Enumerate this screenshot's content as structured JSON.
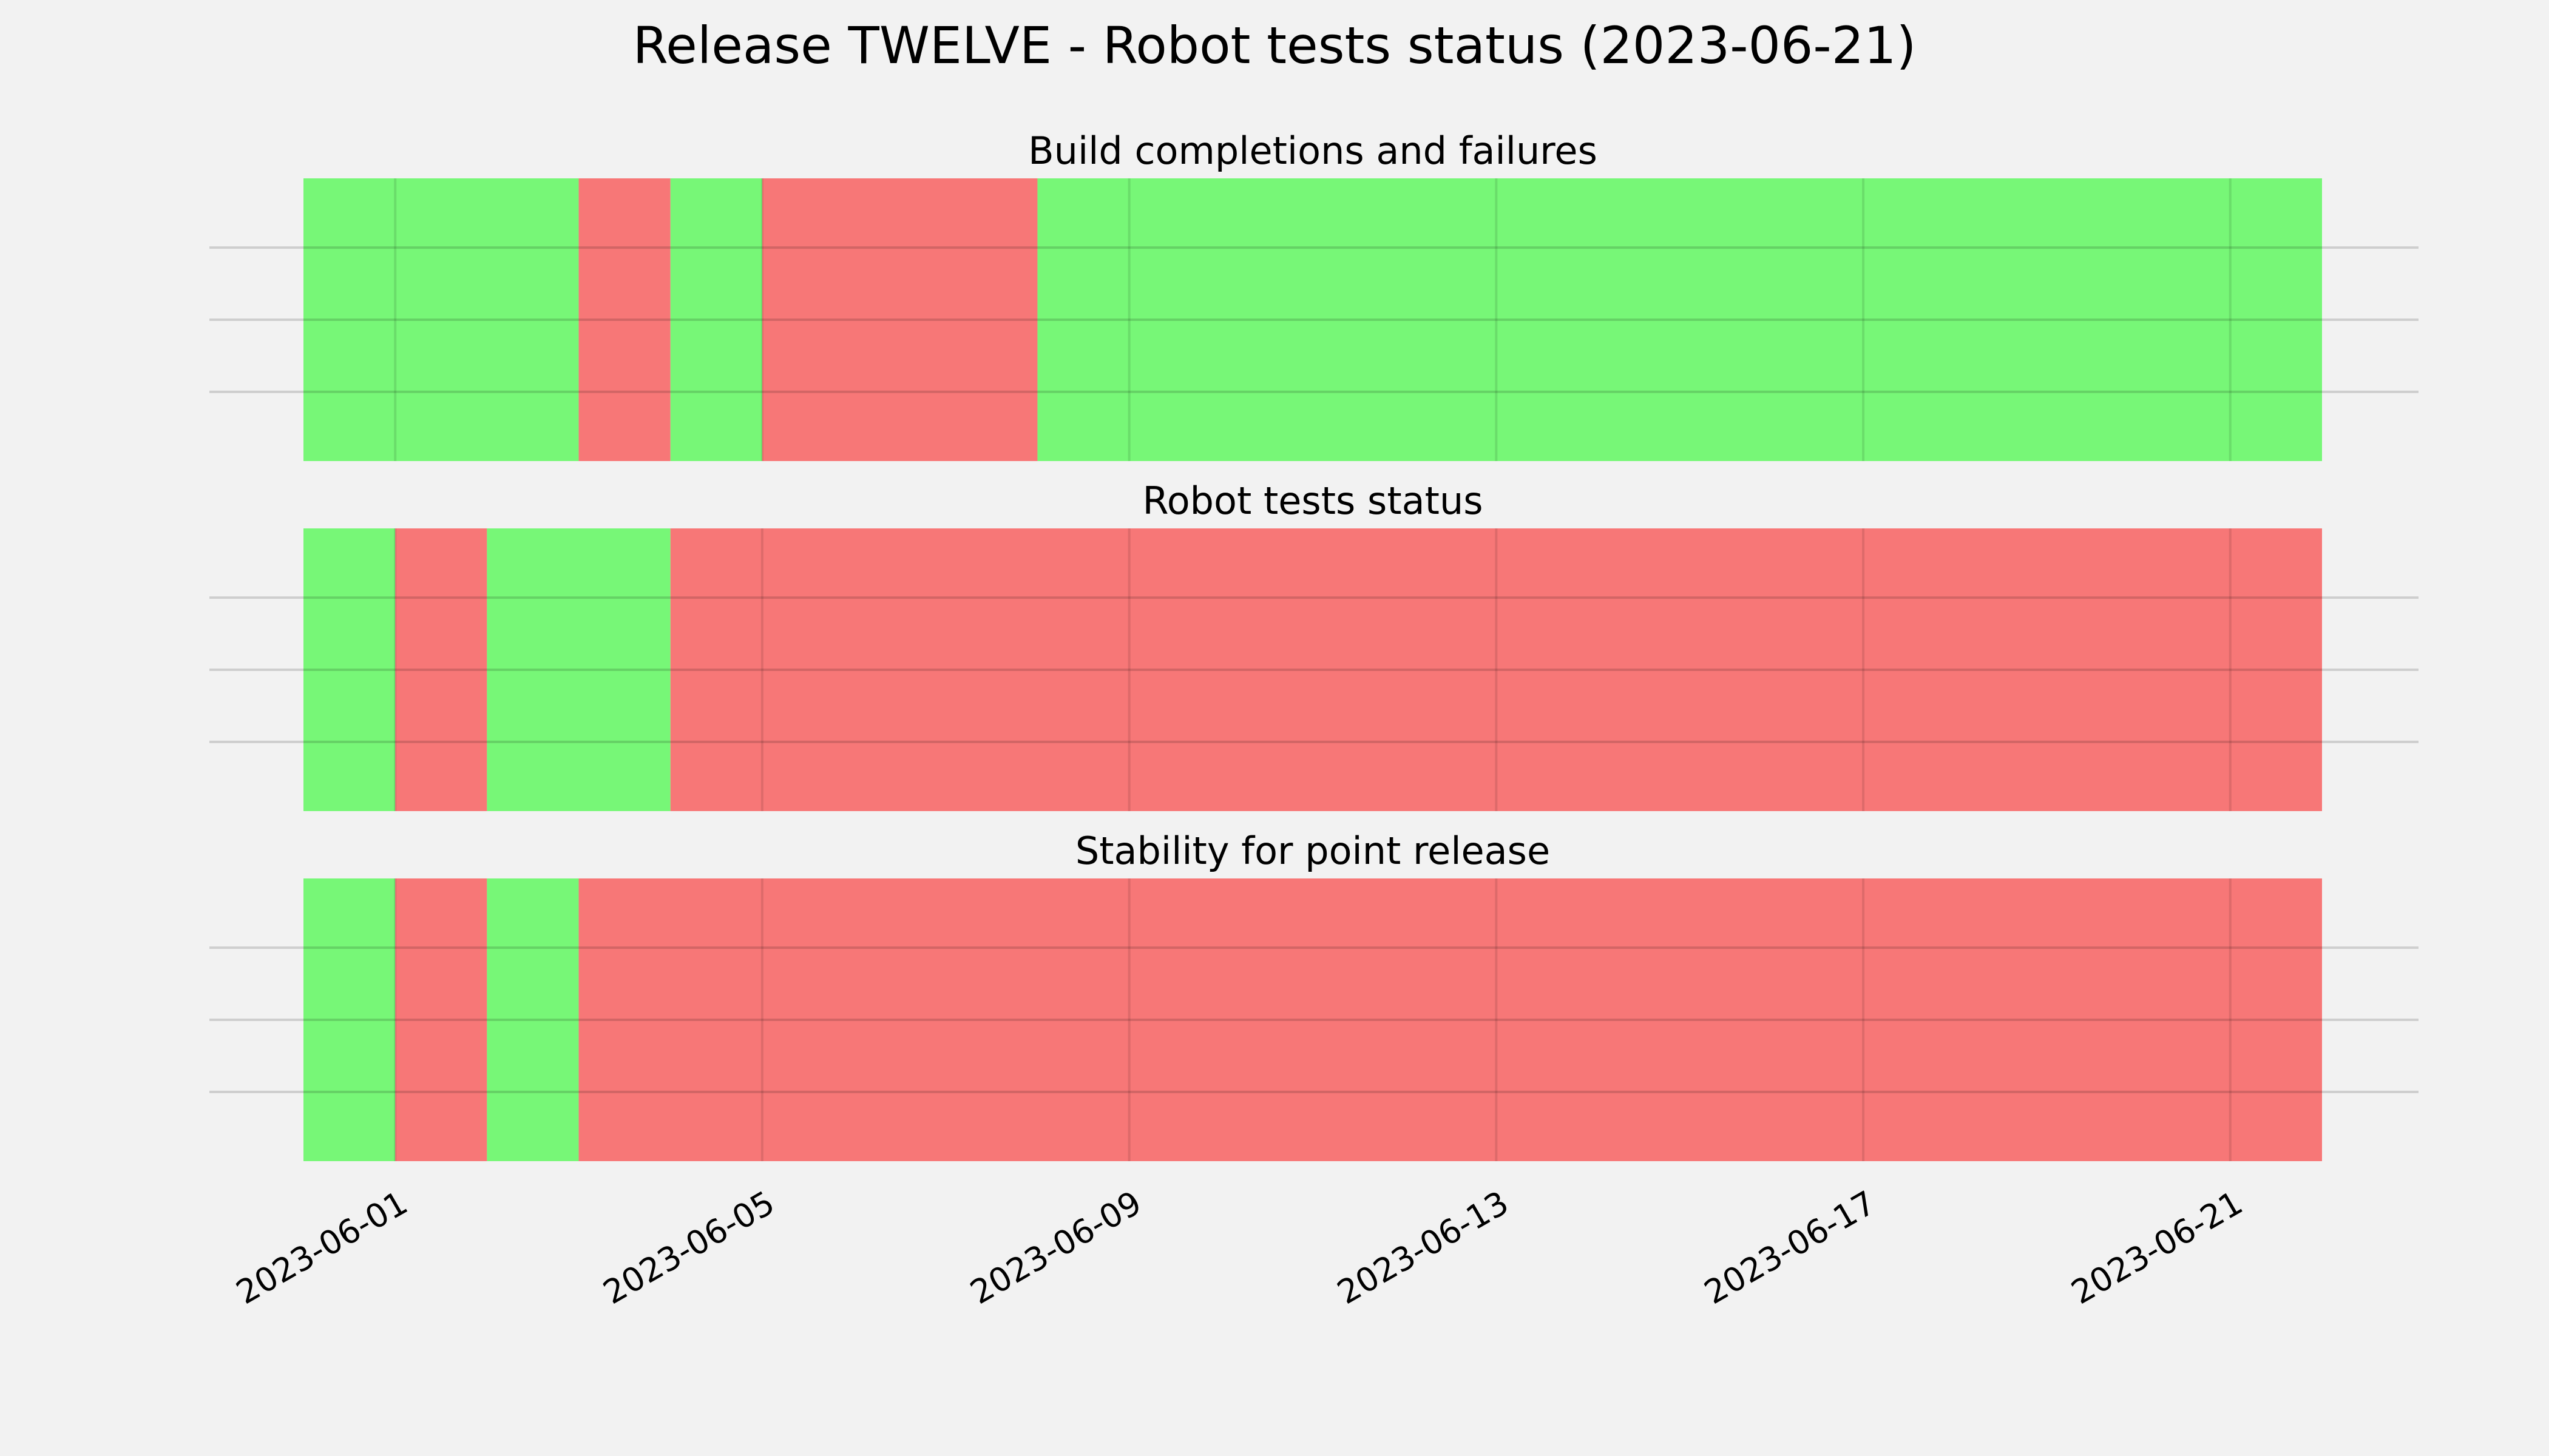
{
  "chart_data": {
    "type": "timeline",
    "title": "Release TWELVE - Robot tests status (2023-06-21)",
    "x_axis": {
      "type": "date",
      "xlim": [
        "2023-05-31",
        "2023-06-22"
      ],
      "ticks": [
        "2023-06-01",
        "2023-06-05",
        "2023-06-09",
        "2023-06-13",
        "2023-06-17",
        "2023-06-21"
      ],
      "tick_label_rotation": 30
    },
    "grid": true,
    "colors": {
      "pass": "#77f777",
      "fail": "#f77777"
    },
    "panels": [
      {
        "title": "Build completions and failures",
        "segments": [
          {
            "start": "2023-05-31",
            "end": "2023-06-03",
            "status": "pass"
          },
          {
            "start": "2023-06-03",
            "end": "2023-06-04",
            "status": "fail"
          },
          {
            "start": "2023-06-04",
            "end": "2023-06-05",
            "status": "pass"
          },
          {
            "start": "2023-06-05",
            "end": "2023-06-08",
            "status": "fail"
          },
          {
            "start": "2023-06-08",
            "end": "2023-06-22",
            "status": "pass"
          }
        ]
      },
      {
        "title": "Robot tests status",
        "segments": [
          {
            "start": "2023-05-31",
            "end": "2023-06-01",
            "status": "pass"
          },
          {
            "start": "2023-06-01",
            "end": "2023-06-02",
            "status": "fail"
          },
          {
            "start": "2023-06-02",
            "end": "2023-06-04",
            "status": "pass"
          },
          {
            "start": "2023-06-04",
            "end": "2023-06-22",
            "status": "fail"
          }
        ]
      },
      {
        "title": "Stability for point release",
        "segments": [
          {
            "start": "2023-05-31",
            "end": "2023-06-01",
            "status": "pass"
          },
          {
            "start": "2023-06-01",
            "end": "2023-06-02",
            "status": "fail"
          },
          {
            "start": "2023-06-02",
            "end": "2023-06-03",
            "status": "pass"
          },
          {
            "start": "2023-06-03",
            "end": "2023-06-22",
            "status": "fail"
          }
        ]
      }
    ]
  }
}
